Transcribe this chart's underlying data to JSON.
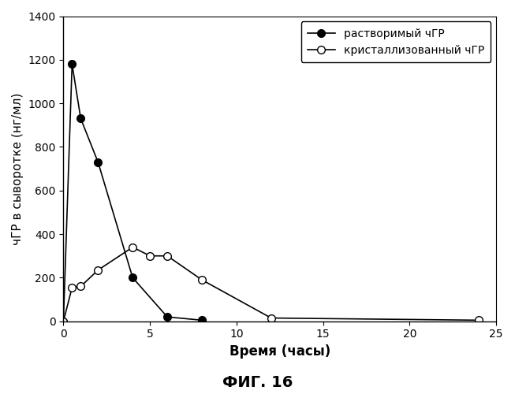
{
  "soluble_x": [
    0,
    0.5,
    1,
    2,
    4,
    6,
    8
  ],
  "soluble_y": [
    0,
    1180,
    930,
    730,
    200,
    20,
    5
  ],
  "crystal_x": [
    0,
    0.5,
    1,
    2,
    4,
    5,
    6,
    8,
    12,
    24
  ],
  "crystal_y": [
    0,
    155,
    160,
    235,
    340,
    300,
    300,
    190,
    15,
    5
  ],
  "xlabel": "Время (часы)",
  "ylabel": "чГР в сыворотке (нг/мл)",
  "label_soluble": "растворимый чГР",
  "label_crystal": "кристаллизованный чГР",
  "title": "ФИГ. 16",
  "xlim": [
    0,
    25
  ],
  "ylim": [
    0,
    1400
  ],
  "yticks": [
    0,
    200,
    400,
    600,
    800,
    1000,
    1200,
    1400
  ],
  "xticks": [
    0,
    5,
    10,
    15,
    20,
    25
  ],
  "line_color": "#000000",
  "bg_color": "#ffffff"
}
